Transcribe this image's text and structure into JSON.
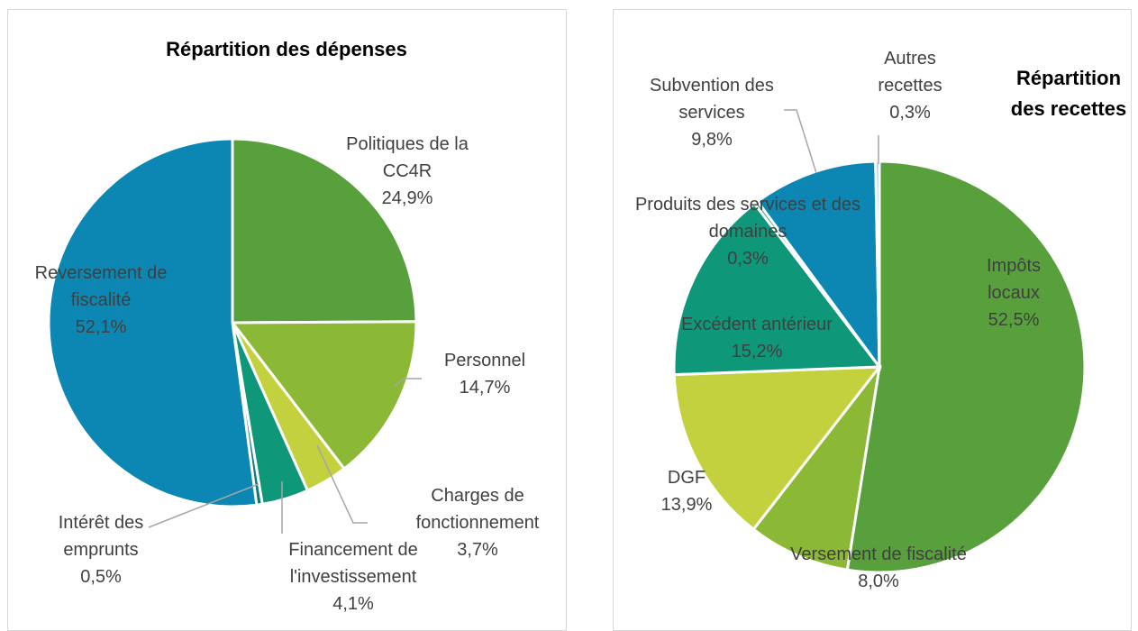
{
  "chart_data": [
    {
      "type": "pie",
      "title": "Répartition des dépenses",
      "categories": [
        "Politiques de la CC4R",
        "Personnel",
        "Charges de fonctionnement",
        "Financement de l'investissement",
        "Intérêt des emprunts",
        "Reversement de fiscalité"
      ],
      "values": [
        24.9,
        14.7,
        3.7,
        4.1,
        0.5,
        52.1
      ],
      "value_labels": [
        "24,9%",
        "14,7%",
        "3,7%",
        "4,1%",
        "0,5%",
        "52,1%"
      ],
      "colors": [
        "#58a03c",
        "#8bb935",
        "#c4d13e",
        "#0f977a",
        "#0b7a78",
        "#0c87b3"
      ]
    },
    {
      "type": "pie",
      "title": "Répartition des recettes",
      "categories": [
        "Impôts locaux",
        "Versement de fiscalité",
        "DGF",
        "Excédent antérieur",
        "Produits des services et des domaines",
        "Subvention des services",
        "Autres recettes"
      ],
      "values": [
        52.5,
        8.0,
        13.9,
        15.2,
        0.3,
        9.8,
        0.3
      ],
      "value_labels": [
        "52,5%",
        "8,0%",
        "13,9%",
        "15,2%",
        "0,3%",
        "9,8%",
        "0,3%"
      ],
      "colors": [
        "#58a03c",
        "#8bb935",
        "#c4d13e",
        "#0f977a",
        "#1b9a6a",
        "#0c87b3",
        "#8fc3e0"
      ]
    }
  ]
}
